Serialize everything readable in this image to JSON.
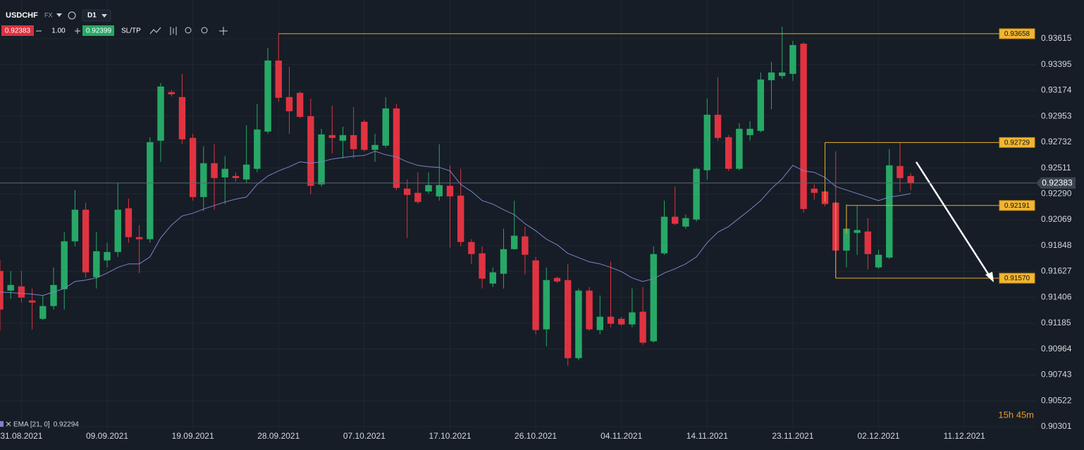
{
  "toolbar": {
    "symbol": "USDCHF",
    "market": "FX",
    "timeframe": "D1",
    "bid": 0.92383,
    "quantity": "1.00",
    "ask": 0.92399,
    "sltp": "SL/TP"
  },
  "chart_data": {
    "type": "candlestick",
    "color_up": "#27a866",
    "color_down": "#e03341",
    "open": [
      0.91632,
      0.91464,
      0.915,
      0.9138,
      0.91223,
      0.91332,
      0.91476,
      0.91885,
      0.92155,
      0.91578,
      0.91722,
      0.91794,
      0.92167,
      0.91921,
      0.91903,
      0.92744,
      0.93159,
      0.93117,
      0.92768,
      0.92263,
      0.92552,
      0.92431,
      0.92443,
      0.92413,
      0.92504,
      0.92822,
      0.93429,
      0.93117,
      0.93153,
      0.92954,
      0.92371,
      0.92792,
      0.92744,
      0.92792,
      0.92906,
      0.92666,
      0.92702,
      0.9302,
      0.92335,
      0.92299,
      0.92311,
      0.92269,
      0.92359,
      0.92275,
      0.91879,
      0.91782,
      0.91524,
      0.91608,
      0.91818,
      0.91927,
      0.91722,
      0.91133,
      0.91572,
      0.91554,
      0.90887,
      0.91464,
      0.91127,
      0.91241,
      0.91223,
      0.91175,
      0.91284,
      0.91031,
      0.91782,
      0.92095,
      0.92011,
      0.92071,
      0.92492,
      0.92966,
      0.92774,
      0.92504,
      0.92792,
      0.92828,
      0.93261,
      0.93297,
      0.93315,
      0.93573,
      0.92335,
      0.92311,
      0.92215,
      0.91806,
      0.91957,
      0.91969,
      0.91662,
      0.91746,
      0.92528,
      0.92443
    ],
    "high": [
      0.91722,
      0.91632,
      0.91632,
      0.91482,
      0.91422,
      0.91662,
      0.91963,
      0.92323,
      0.92215,
      0.91963,
      0.91873,
      0.92383,
      0.92251,
      0.92023,
      0.92774,
      0.93237,
      0.93177,
      0.93315,
      0.92804,
      0.92696,
      0.92714,
      0.92612,
      0.92474,
      0.92876,
      0.93057,
      0.93537,
      0.93658,
      0.93375,
      0.93165,
      0.93105,
      0.92846,
      0.93044,
      0.92864,
      0.93032,
      0.92924,
      0.92804,
      0.93117,
      0.93057,
      0.92413,
      0.92474,
      0.92474,
      0.92714,
      0.92534,
      0.92504,
      0.91903,
      0.91842,
      0.91662,
      0.91993,
      0.92233,
      0.92011,
      0.91752,
      0.91662,
      0.91584,
      0.91692,
      0.91482,
      0.91494,
      0.91422,
      0.9171,
      0.91241,
      0.91482,
      0.91494,
      0.91842,
      0.92233,
      0.92353,
      0.92113,
      0.92516,
      0.93105,
      0.93285,
      0.92792,
      0.92894,
      0.92912,
      0.93327,
      0.93417,
      0.93718,
      0.93597,
      0.93585,
      0.92371,
      0.92729,
      0.92654,
      0.92203,
      0.92191,
      0.92083,
      0.91812,
      0.92672,
      0.92732,
      0.92468
    ],
    "low": [
      0.91121,
      0.91392,
      0.91362,
      0.91133,
      0.91211,
      0.91302,
      0.91302,
      0.91842,
      0.91572,
      0.91482,
      0.91662,
      0.91752,
      0.91873,
      0.91614,
      0.91873,
      0.92564,
      0.93123,
      0.92714,
      0.92233,
      0.92143,
      0.92155,
      0.92203,
      0.92395,
      0.92383,
      0.92474,
      0.92804,
      0.93075,
      0.92804,
      0.92936,
      0.92287,
      0.92353,
      0.92636,
      0.92594,
      0.92594,
      0.92654,
      0.92564,
      0.92684,
      0.92323,
      0.91915,
      0.92203,
      0.92293,
      0.92233,
      0.9183,
      0.91842,
      0.91692,
      0.91482,
      0.91494,
      0.91482,
      0.91812,
      0.91602,
      0.91091,
      0.90989,
      0.9153,
      0.90821,
      0.90869,
      0.91121,
      0.91091,
      0.91151,
      0.91163,
      0.91151,
      0.91001,
      0.91019,
      0.9177,
      0.92023,
      0.91993,
      0.92053,
      0.92413,
      0.92744,
      0.92486,
      0.92492,
      0.92744,
      0.92816,
      0.93014,
      0.93273,
      0.93255,
      0.92131,
      0.92239,
      0.92185,
      0.9157,
      0.91662,
      0.9177,
      0.91644,
      0.9165,
      0.91734,
      0.92305,
      0.92323
    ],
    "close": [
      0.91302,
      0.91512,
      0.91404,
      0.91362,
      0.91332,
      0.91512,
      0.91885,
      0.92155,
      0.9162,
      0.918,
      0.91794,
      0.92155,
      0.91921,
      0.91903,
      0.92732,
      0.93207,
      0.93141,
      0.92756,
      0.92263,
      0.92552,
      0.92425,
      0.92504,
      0.92425,
      0.9254,
      0.9284,
      0.93429,
      0.93111,
      0.92996,
      0.92948,
      0.92359,
      0.92798,
      0.92768,
      0.92792,
      0.92672,
      0.92666,
      0.92708,
      0.9302,
      0.92341,
      0.92281,
      0.92221,
      0.92365,
      0.92365,
      0.92269,
      0.91879,
      0.91776,
      0.91566,
      0.9162,
      0.91818,
      0.91933,
      0.9177,
      0.91127,
      0.91554,
      0.91542,
      0.90887,
      0.91464,
      0.91133,
      0.91241,
      0.91181,
      0.91175,
      0.91278,
      0.91019,
      0.91776,
      0.92095,
      0.92035,
      0.92083,
      0.92504,
      0.92966,
      0.92768,
      0.92504,
      0.92846,
      0.92846,
      0.93267,
      0.93327,
      0.93327,
      0.93561,
      0.92161,
      0.92299,
      0.92203,
      0.91806,
      0.91993,
      0.91981,
      0.91776,
      0.9177,
      0.92534,
      0.92425,
      0.92383
    ],
    "series": [
      {
        "name": "EMA [21, 0]",
        "color": "#7e82cc",
        "values": [
          0.91452,
          0.91446,
          0.9144,
          0.91434,
          0.91422,
          0.91452,
          0.91482,
          0.91542,
          0.91554,
          0.91572,
          0.91614,
          0.91662,
          0.91692,
          0.91692,
          0.91752,
          0.91915,
          0.92023,
          0.92101,
          0.92125,
          0.92161,
          0.92191,
          0.92221,
          0.92245,
          0.92263,
          0.92371,
          0.92443,
          0.92486,
          0.92522,
          0.92564,
          0.92552,
          0.92564,
          0.92588,
          0.926,
          0.92612,
          0.92618,
          0.92654,
          0.92624,
          0.92606,
          0.92564,
          0.92534,
          0.92522,
          0.92516,
          0.92486,
          0.92371,
          0.92311,
          0.92233,
          0.92203,
          0.92155,
          0.92113,
          0.92035,
          0.91975,
          0.91903,
          0.91855,
          0.91782,
          0.91746,
          0.9171,
          0.91692,
          0.91662,
          0.91626,
          0.91572,
          0.91542,
          0.91566,
          0.91614,
          0.9165,
          0.91692,
          0.91752,
          0.91873,
          0.91963,
          0.92011,
          0.92083,
          0.92155,
          0.92233,
          0.92335,
          0.92419,
          0.92534,
          0.92486,
          0.92474,
          0.92431,
          0.92353,
          0.92323,
          0.92293,
          0.92263,
          0.92233,
          0.92263,
          0.92275,
          0.92294
        ]
      }
    ],
    "xlim": [
      0,
      96.7
    ],
    "xticks": [
      {
        "value": 2,
        "label": "31.08.2021"
      },
      {
        "value": 10,
        "label": "09.09.2021"
      },
      {
        "value": 18,
        "label": "19.09.2021"
      },
      {
        "value": 26,
        "label": "28.09.2021"
      },
      {
        "value": 34,
        "label": "07.10.2021"
      },
      {
        "value": 42,
        "label": "17.10.2021"
      },
      {
        "value": 50,
        "label": "26.10.2021"
      },
      {
        "value": 58,
        "label": "04.11.2021"
      },
      {
        "value": 66,
        "label": "14.11.2021"
      },
      {
        "value": 74,
        "label": "23.11.2021"
      },
      {
        "value": 82,
        "label": "02.12.2021"
      },
      {
        "value": 90,
        "label": "11.12.2021"
      }
    ],
    "ylim": [
      0.90277,
      0.93946
    ],
    "yticks": [
      0.93615,
      0.93395,
      0.93174,
      0.92953,
      0.92732,
      0.92511,
      {
        "value": 0.9229,
        "label": "0.92290"
      },
      0.92069,
      0.91848,
      0.91627,
      0.91406,
      0.91185,
      0.90964,
      0.90743,
      0.90522,
      0.90301
    ],
    "grid": true,
    "levels": [
      0.93658,
      0.92729,
      0.92191,
      {
        "value": 0.9157,
        "label": "0.91570"
      }
    ],
    "level_color": "#e6ac2c",
    "current_price": 0.92383,
    "countdown": "15h 45m"
  }
}
